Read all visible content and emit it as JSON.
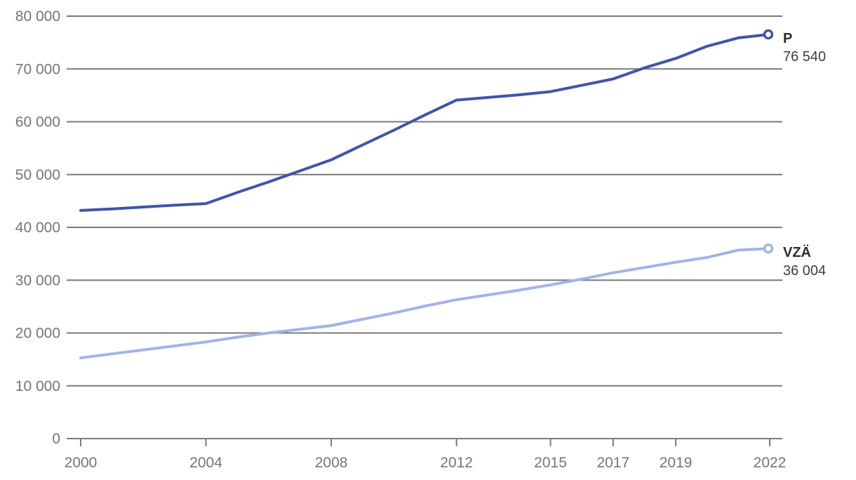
{
  "chart_data": {
    "type": "line",
    "title": "",
    "xlabel": "",
    "ylabel": "",
    "xlim": [
      2000,
      2022
    ],
    "ylim": [
      0,
      80000
    ],
    "grid": "horizontal",
    "legend_position": "end-of-line-labels",
    "x": [
      2000,
      2001,
      2002,
      2003,
      2004,
      2005,
      2006,
      2007,
      2008,
      2009,
      2010,
      2011,
      2012,
      2013,
      2014,
      2015,
      2016,
      2017,
      2018,
      2019,
      2020,
      2021,
      2022
    ],
    "x_ticks": [
      2000,
      2004,
      2008,
      2012,
      2015,
      2017,
      2019,
      2022
    ],
    "x_tick_labels": [
      "2000",
      "2004",
      "2008",
      "2012",
      "2015",
      "2017",
      "2019",
      "2022"
    ],
    "y_ticks": [
      0,
      10000,
      20000,
      30000,
      40000,
      50000,
      60000,
      70000,
      80000
    ],
    "y_tick_labels": [
      "0",
      "10 000",
      "20 000",
      "30 000",
      "40 000",
      "50 000",
      "60 000",
      "70 000",
      "80 000"
    ],
    "series": [
      {
        "name": "P",
        "color": "#4055A8",
        "end_value": 76540,
        "end_value_label": "76 540",
        "values": [
          43200,
          43500,
          43850,
          44200,
          44500,
          46600,
          48600,
          50700,
          52800,
          55600,
          58400,
          61300,
          64100,
          64600,
          65100,
          65700,
          66900,
          68100,
          70200,
          72000,
          74300,
          75900,
          76540
        ]
      },
      {
        "name": "VZÄ",
        "color": "#A3B3E9",
        "end_value": 36004,
        "end_value_label": "36 004",
        "values": [
          15280,
          16050,
          16800,
          17550,
          18300,
          19200,
          20000,
          20700,
          21400,
          22600,
          23800,
          25100,
          26300,
          27200,
          28100,
          29100,
          30200,
          31400,
          32400,
          33400,
          34300,
          35700,
          36004
        ]
      }
    ]
  },
  "colors": {
    "background": "#ffffff",
    "gridline": "#7a7a7a",
    "tick_label": "#757575",
    "series_p": "#4055A8",
    "series_vza": "#A3B3E9",
    "end_label_name": "#2d2d2d",
    "end_label_value": "#3e3e3e"
  }
}
